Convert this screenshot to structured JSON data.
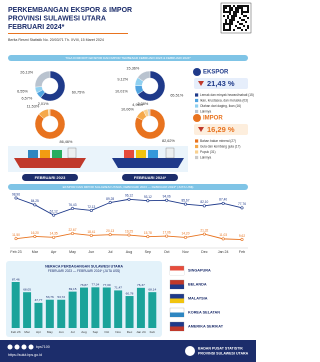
{
  "header": {
    "title": [
      "PERKEMBANGAN EKSPOR & IMPOR",
      "PROVINSI SULAWESI UTARA",
      "FEBRUARI 2024*"
    ],
    "subtitle": "Berita Resmi Statistik No. 20/03/71 Th. XVIII, 15 Maret 2024"
  },
  "commodity_section": {
    "title": "TIGA KOMODITI EKSPOR DAN IMPOR TERBESAR FEBRUARI 2023 & FEBRUARI 2024*",
    "periods": [
      "FEBRUARI 2023",
      "FEBRUARI 2024*"
    ]
  },
  "export_summary": {
    "label": "EKSPOR",
    "change": "21,43 %",
    "legend": [
      "Lemak dan minyak hewani/nabati (15)",
      "Ikan, krustasea, dan moluska (03)",
      "Olahan dari daging, ikan (16)",
      "Lainnya"
    ]
  },
  "import_summary": {
    "label": "IMPOR",
    "change": "16,29 %",
    "legend": [
      "Bahan bakar mineral (27)",
      "Gula dan kembang gula (17)",
      "Pupuk (31)",
      "Lainnya"
    ]
  },
  "chart_data": [
    {
      "type": "pie",
      "values": [
        60.75,
        6.57,
        6.55,
        26.13
      ],
      "value_labels": [
        "60,75%",
        "6,57%",
        "6,55%",
        "26,13%"
      ],
      "colors": [
        "#1f3a8a",
        "#4fa3e0",
        "#8fd0f0",
        "#b9c3cf"
      ]
    },
    {
      "type": "pie",
      "values": [
        65.51,
        10.01,
        9.12,
        15.36
      ],
      "value_labels": [
        "65,51%",
        "10,01%",
        "9,12%",
        "15,36%"
      ],
      "colors": [
        "#1f3a8a",
        "#4fa3e0",
        "#8fd0f0",
        "#b9c3cf"
      ]
    },
    {
      "type": "pie",
      "values": [
        86.46,
        11.53,
        2.01
      ],
      "value_labels": [
        "86,46%",
        "11,53%",
        "2,01%"
      ],
      "colors": [
        "#e8731f",
        "#f5a84a",
        "#f8d08f",
        "#c9c9c9"
      ]
    },
    {
      "type": "pie",
      "values": [
        82.62,
        10.06,
        4.96,
        2.38
      ],
      "value_labels": [
        "82,62%",
        "10,06%",
        "4,96%",
        "2,38%"
      ],
      "colors": [
        "#e8731f",
        "#f5a84a",
        "#f8d08f",
        "#c9c9c9"
      ]
    },
    {
      "type": "line",
      "title": "EKSPOR DAN IMPOR SULAWESI UTARA, FEBRUARI 2023 — FEBRUARI 2024* (JUTA US$)",
      "categories": [
        "Feb 23",
        "Mar",
        "Apr",
        "May",
        "Jun",
        "Jul",
        "Aug",
        "Sep",
        "Oct",
        "Nov",
        "Dec",
        "Jan 24",
        "Feb"
      ],
      "series": [
        {
          "color": "#1f3a8a",
          "values": [
            98.96,
            84.25,
            62.12,
            76.43,
            72.13,
            89.28,
            96.12,
            93.12,
            94.06,
            85.67,
            82.1,
            87.4,
            77.76
          ],
          "value_labels": [
            "98,96",
            "84,25",
            "62,12",
            "76,43",
            "72,13",
            "89,28",
            "96,12",
            "93,12",
            "94,06",
            "85,67",
            "82,10",
            "87,40",
            "77,76"
          ]
        },
        {
          "color": "#e8731f",
          "values": [
            11.5,
            16.2,
            14.35,
            22.67,
            18.41,
            20.13,
            19.25,
            15.78,
            17.06,
            14.2,
            21.32,
            11.03,
            9.62
          ],
          "value_labels": [
            "11,50",
            "16,20",
            "14,35",
            "22,67",
            "18,41",
            "20,13",
            "19,25",
            "15,78",
            "17,06",
            "14,20",
            "21,32",
            "11,03",
            "9,62"
          ]
        }
      ]
    },
    {
      "type": "bar",
      "title": [
        "NERACA PERDAGANGAN SULAWESI UTARA",
        "FEBRUARI 2023 — FEBRUARI 2024* (JUTA US$)"
      ],
      "categories": [
        "Feb 23",
        "Mar",
        "Apr",
        "May",
        "Jun",
        "Jul",
        "Aug",
        "Sep",
        "Oct",
        "Nov",
        "Dec",
        "Jan 24",
        "Feb"
      ],
      "values": [
        87.46,
        68.05,
        47.77,
        53.76,
        53.72,
        69.15,
        76.87,
        77.34,
        77.0,
        71.47,
        60.78,
        76.37,
        68.14
      ],
      "value_labels": [
        "87,46",
        "68,05",
        "47,77",
        "53,76",
        "53,72",
        "69,15",
        "76,87",
        "77,34",
        "77,00",
        "71,47",
        "60,78",
        "76,37",
        "68,14"
      ],
      "color": "#1aa39a"
    }
  ],
  "countries": [
    "SINGAPURA",
    "BELANDA",
    "MALAYSIA",
    "KOREA SELATAN",
    "AMERIKA SERIKAT"
  ],
  "footer": {
    "handle": "bps7100",
    "site": "https://sulut.bps.go.id",
    "org": [
      "BADAN PUSAT STATISTIK",
      "PROVINSI SULAWESI UTARA"
    ]
  }
}
